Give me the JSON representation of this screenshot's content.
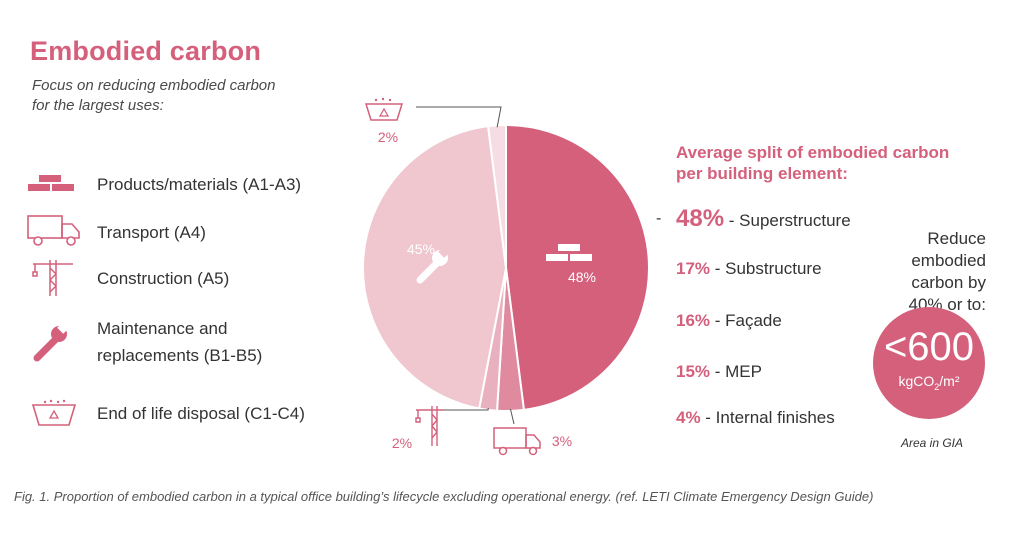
{
  "header": {
    "title": "Embodied carbon",
    "subtitle_line1": "Focus on reducing embodied carbon",
    "subtitle_line2": "for the largest uses:"
  },
  "legend": [
    {
      "label_line1": "Products/materials (A1-A3)",
      "label_line2": "",
      "icon": "bricks-icon"
    },
    {
      "label_line1": "Transport (A4)",
      "label_line2": "",
      "icon": "truck-icon"
    },
    {
      "label_line1": "Construction (A5)",
      "label_line2": "",
      "icon": "crane-icon"
    },
    {
      "label_line1": "Maintenance and",
      "label_line2": "replacements (B1-B5)",
      "icon": "wrench-icon"
    },
    {
      "label_line1": "End of life disposal (C1-C4)",
      "label_line2": "",
      "icon": "skip-bin-icon"
    }
  ],
  "colors": {
    "accent": "#d4607c",
    "products": "#d4607c",
    "transport": "#e08aa0",
    "construction": "#e9b1bf",
    "maintenance": "#f0c6cf",
    "end_of_life": "#f6dde3",
    "icon_white": "#ffffff"
  },
  "chart_data": {
    "type": "pie",
    "slices": [
      {
        "category": "Products/materials (A1-A3)",
        "value": 48,
        "label": "48%",
        "icon": "bricks-icon"
      },
      {
        "category": "Transport (A4)",
        "value": 3,
        "label": "3%",
        "icon": "truck-icon"
      },
      {
        "category": "Construction (A5)",
        "value": 2,
        "label": "2%",
        "icon": "crane-icon"
      },
      {
        "category": "Maintenance and replacements (B1-B5)",
        "value": 45,
        "label": "45%",
        "icon": "wrench-icon"
      },
      {
        "category": "End of life disposal (C1-C4)",
        "value": 2,
        "label": "2%",
        "icon": "skip-bin-icon"
      }
    ],
    "title": "",
    "start_angle": "top, clockwise"
  },
  "split": {
    "title_line1": "Average split of embodied carbon",
    "title_line2": "per building element:",
    "dash": "-",
    "items": [
      {
        "pct": "48%",
        "label": " - Superstructure"
      },
      {
        "pct": "17%",
        "label": " - Substructure"
      },
      {
        "pct": "16%",
        "label": " - Façade"
      },
      {
        "pct": "15%",
        "label": " - MEP"
      },
      {
        "pct": "4%",
        "label": " - Internal finishes"
      }
    ]
  },
  "target": {
    "line1": "Reduce",
    "line2": "embodied",
    "line3": "carbon by",
    "line4": "40% or to:",
    "value": "<600",
    "unit_prefix": "kgCO",
    "unit_sub": "2",
    "unit_suffix": "/m²",
    "note": "Area in GIA"
  },
  "caption": "Fig. 1. Proportion of embodied carbon in a typical office building’s lifecycle excluding operational energy. (ref. LETI Climate Emergency Design Guide)"
}
